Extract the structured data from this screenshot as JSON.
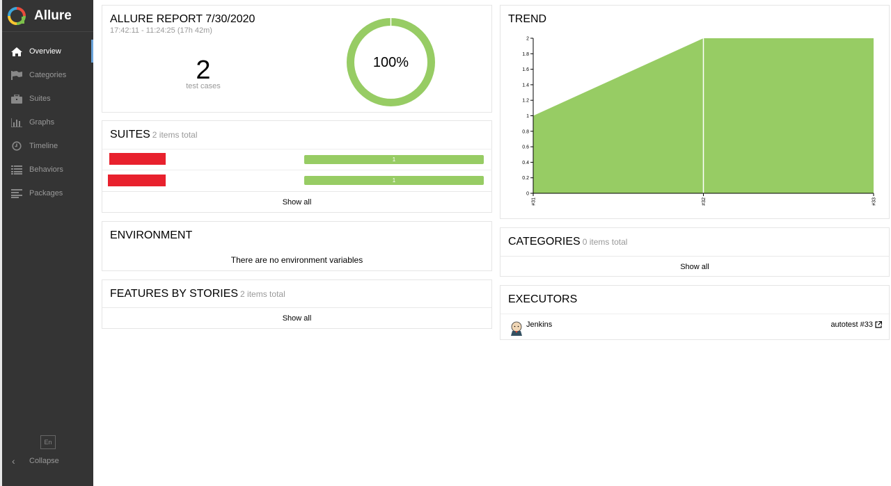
{
  "app": {
    "name": "Allure"
  },
  "sidebar": {
    "items": [
      {
        "label": "Overview",
        "icon": "home-icon",
        "active": true
      },
      {
        "label": "Categories",
        "icon": "flag-icon",
        "active": false
      },
      {
        "label": "Suites",
        "icon": "briefcase-icon",
        "active": false
      },
      {
        "label": "Graphs",
        "icon": "bar-chart-icon",
        "active": false
      },
      {
        "label": "Timeline",
        "icon": "clock-icon",
        "active": false
      },
      {
        "label": "Behaviors",
        "icon": "list-icon",
        "active": false
      },
      {
        "label": "Packages",
        "icon": "align-left-icon",
        "active": false
      }
    ],
    "language": "En",
    "collapse_label": "Collapse"
  },
  "summary": {
    "title": "ALLURE REPORT 7/30/2020",
    "time_range": "17:42:11 - 11:24:25 (17h 42m)",
    "test_count": "2",
    "test_label": "test cases",
    "success_rate": "100%",
    "success_fraction": 1.0
  },
  "suites": {
    "title": "SUITES",
    "count": "2 items total",
    "rows": [
      {
        "bar_value": "1"
      },
      {
        "bar_value": "1"
      }
    ],
    "show_all": "Show all"
  },
  "environment": {
    "title": "ENVIRONMENT",
    "message": "There are no environment variables"
  },
  "features": {
    "title": "FEATURES BY STORIES",
    "count": "2 items total",
    "show_all": "Show all"
  },
  "trend": {
    "title": "TREND"
  },
  "categories": {
    "title": "CATEGORIES",
    "count": "0 items total",
    "show_all": "Show all"
  },
  "executors": {
    "title": "EXECUTORS",
    "name": "Jenkins",
    "build": "autotest #33"
  },
  "colors": {
    "sidebar_bg": "#343434",
    "passed": "#97cc64",
    "failed": "#e8212d",
    "active_marker": "#6aa3d9"
  },
  "chart_data": {
    "type": "area",
    "categories": [
      "#31",
      "#32",
      "#33"
    ],
    "series": [
      {
        "values": [
          1,
          2,
          2
        ]
      }
    ],
    "ylim": [
      0,
      2
    ],
    "yticks": [
      "0",
      "0.2",
      "0.4",
      "0.6",
      "0.8",
      "1",
      "1.2",
      "1.4",
      "1.6",
      "1.8",
      "2"
    ],
    "grid": false
  }
}
